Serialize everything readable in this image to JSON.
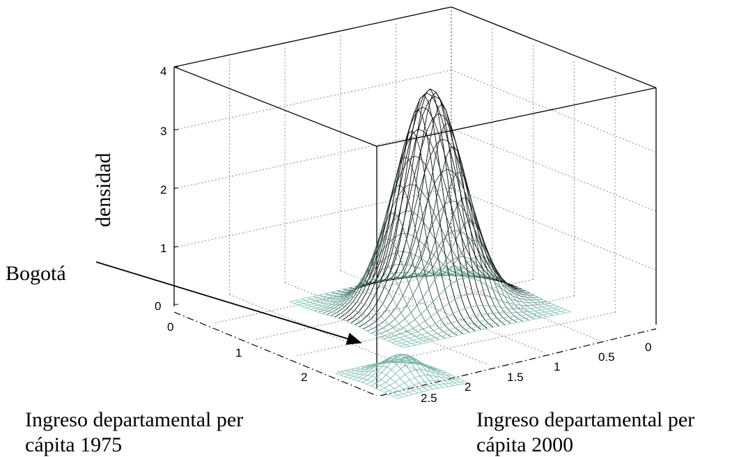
{
  "chart_data": {
    "type": "surface",
    "zlabel": "densidad",
    "xlabel_lines": [
      "Ingreso departamental per",
      "cápita 1975"
    ],
    "ylabel_lines": [
      "Ingreso departamental per",
      "cápita 2000"
    ],
    "zlim": [
      0,
      4
    ],
    "xlim": [
      0,
      2.5
    ],
    "ylim": [
      0,
      2.5
    ],
    "z_ticks": [
      "0",
      "1",
      "2",
      "3",
      "4"
    ],
    "x_ticks": [
      "0",
      "1",
      "2"
    ],
    "y_ticks": [
      "0",
      "0.5",
      "1",
      "1.5",
      "2",
      "2.5"
    ],
    "grid": true,
    "peaks": [
      {
        "x": 1.1,
        "y": 1.0,
        "z": 3.7
      },
      {
        "x": 2.4,
        "y": 2.2,
        "z": 0.4
      }
    ],
    "annotation": {
      "text": "Bogotá"
    },
    "colors": {
      "surface_low": "#8fd3c5",
      "surface_high": "#000000",
      "mesh_low": "#4a4a9a"
    }
  }
}
